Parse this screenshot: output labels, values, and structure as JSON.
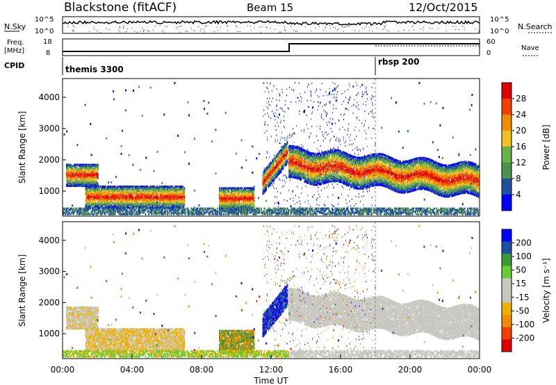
{
  "header": {
    "title": "Blackstone (fitACF)",
    "beam": "Beam 15",
    "date": "12/Oct/2015"
  },
  "top_panels": {
    "nsky_label": "N.Sky",
    "nsearch_label": "N.Search",
    "nsky_ticks": [
      "10^5",
      "10^0"
    ],
    "nsearch_ticks": [
      "10^5",
      "10^0"
    ],
    "freq_label_line1": "Freq.",
    "freq_label_line2": "[MHz]",
    "freq_ticks": [
      "18",
      "8"
    ],
    "nave_label": "Nave",
    "nave_ticks": [
      "60",
      "0"
    ],
    "cpid_label": "CPID",
    "cpid_segments": [
      {
        "label": "themis 3300",
        "start_hour": 0
      },
      {
        "label": "rbsp 200",
        "start_hour": 18
      }
    ]
  },
  "colors": {
    "power_scale": [
      "#0000ff",
      "#1e4fa0",
      "#4f8f4f",
      "#66b24a",
      "#f0c020",
      "#f08c00",
      "#f04000",
      "#e00000"
    ],
    "velocity_scale": [
      "#e00000",
      "#f04000",
      "#f08c00",
      "#f0b000",
      "#c8c8c0",
      "#c8c8c0",
      "#66cc33",
      "#3a9a3a",
      "#1e4fa0",
      "#0000ff"
    ]
  },
  "chart_data": [
    {
      "type": "heatmap",
      "title": "",
      "xlabel": "",
      "ylabel": "Slant Range [km]",
      "xlim": [
        0,
        24
      ],
      "ylim": [
        200,
        4600
      ],
      "x_tick_labels": [],
      "y_ticks": [
        1000,
        2000,
        3000,
        4000
      ],
      "colorbar": {
        "label": "Power [dB]",
        "ticks": [
          "28",
          "24",
          "20",
          "16",
          "12",
          "8",
          "4"
        ]
      },
      "features": [
        {
          "start_hour": 0.2,
          "end_hour": 2.0,
          "range_km": 1550
        },
        {
          "start_hour": 1.3,
          "end_hour": 7.0,
          "range_km": 850
        },
        {
          "start_hour": 9.0,
          "end_hour": 11.0,
          "range_km": 800
        },
        {
          "start_hour": 11.5,
          "end_hour": 12.9,
          "range_km": 1600
        },
        {
          "start_hour": 13.0,
          "end_hour": 24.0,
          "range_km": 1700
        }
      ]
    },
    {
      "type": "heatmap",
      "title": "",
      "xlabel": "Time UT",
      "ylabel": "Slant Range [km]",
      "xlim": [
        0,
        24
      ],
      "ylim": [
        200,
        4600
      ],
      "x_tick_labels": [
        "00:00",
        "04:00",
        "08:00",
        "12:00",
        "16:00",
        "20:00",
        "00:00"
      ],
      "y_ticks": [
        1000,
        2000,
        3000,
        4000
      ],
      "colorbar": {
        "label": "Velocity [m s⁻¹]",
        "ticks": [
          "200",
          "100",
          "50",
          "15",
          "-15",
          "-50",
          "-100",
          "-200"
        ]
      }
    }
  ]
}
